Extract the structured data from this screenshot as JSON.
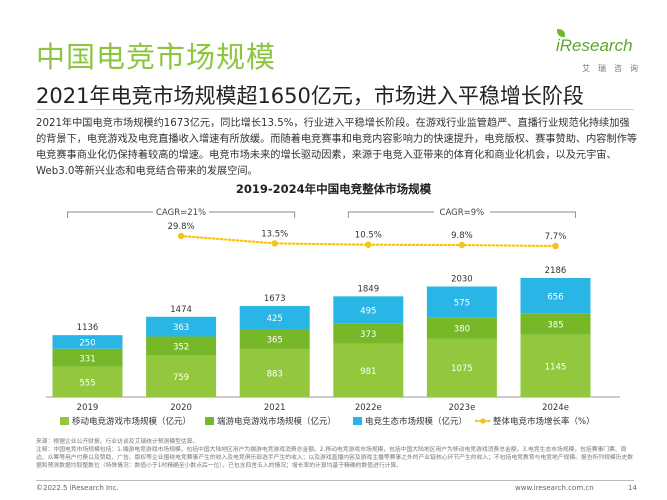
{
  "page": {
    "title": "中国电竞市场规模",
    "headline": "2021年电竞市场规模超1650亿元，市场进入平稳增长阶段",
    "body": "2021年中国电竞市场规模约1673亿元，同比增长13.5%，行业进入平稳增长阶段。在游戏行业监管趋严、直播行业规范化持续加强的背景下，电竞游戏及电竞直播收入增速有所放缓。而随着电竞赛事和电竞内容影响力的快速提升，电竞版权、赛事赞助、内容制作等电竞赛事商业化仍保持着较高的增速。电竞市场未来的增长驱动因素，来源于电竞入亚带来的体育化和商业化机会，以及元宇宙、Web3.0等新兴业态和电竞结合带来的发展空间。",
    "footnote": "来源：根据企业公开财报、行业访谈及艾瑞统计预测模型估算。\n注释：中国电竞市场规模包括：1.端游电竞游戏市场规模，包括中国大陆地区用户为端游电竞游戏消费总金额。2.移动电竞游戏市场规模，包括中国大陆地区用户为移动电竞游戏消费总金额。3.电竞生态市场规模，包括赛事门票、周边、众筹等用户付费以及赞助、广告、版权等企业围绕电竞赛事产生的收入及电竞俱乐部选手产生的收入；以及游戏直播内容及游戏主播等赛事之外的产业链核心环节产生的收入；不包括电竞教育与电竞地产规模。报告所列规模历史数据和预测数据均取整数位（特殊情况：数值小于1时精确至小数点后一位），已包含四舍五入的情况；增长率的计算均基于精确的数值进行计算。",
    "copyright": "©2022.5 iResearch Inc.",
    "url": "www.iresearch.com.cn",
    "page_number": "14"
  },
  "logo": {
    "name": "iResearch",
    "tagline": "艾瑞咨询"
  },
  "colors": {
    "accent": "#8cc63f",
    "mobile": "#93c83e",
    "pc": "#76b828",
    "ecosystem": "#29b6e6",
    "growth_line": "#f7c31a",
    "text": "#333333"
  },
  "chart_data": {
    "type": "bar",
    "stacked": true,
    "title": "2019-2024年中国电竞整体市场规模",
    "categories": [
      "2019",
      "2020",
      "2021",
      "2022e",
      "2023e",
      "2024e"
    ],
    "series": [
      {
        "name": "移动电竞游戏市场规模（亿元）",
        "values": [
          555,
          759,
          883,
          981,
          1075,
          1145
        ]
      },
      {
        "name": "端游电竞游戏市场规模（亿元）",
        "values": [
          331,
          352,
          365,
          373,
          380,
          385
        ]
      },
      {
        "name": "电竞生态市场规模（亿元）",
        "values": [
          250,
          363,
          425,
          495,
          575,
          656
        ]
      }
    ],
    "totals": [
      1136,
      1474,
      1673,
      1849,
      2030,
      2186
    ],
    "line_series": {
      "name": "整体电竞市场增长率（%）",
      "x": [
        "2020",
        "2021",
        "2022e",
        "2023e",
        "2024e"
      ],
      "values": [
        29.8,
        13.5,
        10.5,
        9.8,
        7.7
      ],
      "labels": [
        "29.8%",
        "13.5%",
        "10.5%",
        "9.8%",
        "7.7%"
      ]
    },
    "annotations": [
      {
        "text": "CAGR=21%",
        "from": "2019",
        "to": "2021"
      },
      {
        "text": "CAGR=9%",
        "from": "2022e",
        "to": "2024e"
      }
    ],
    "ylim": [
      0,
      2600
    ],
    "legend_position": "bottom",
    "grid": false,
    "xlabel": "",
    "ylabel": ""
  }
}
